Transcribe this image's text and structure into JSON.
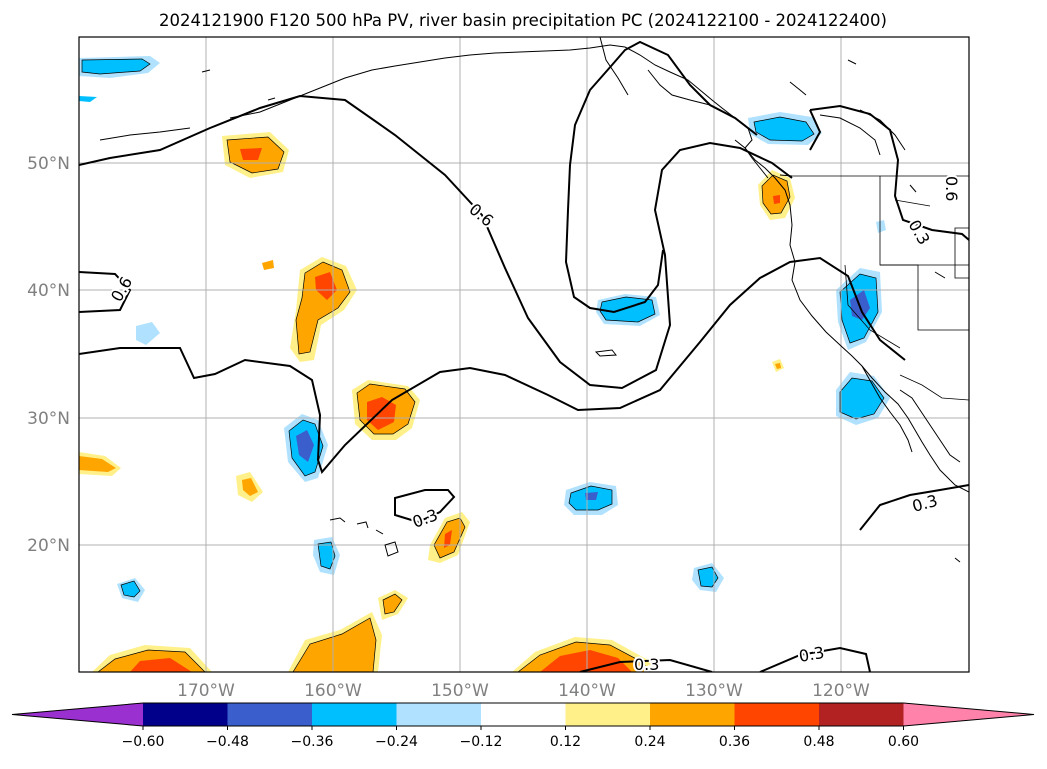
{
  "title": "2024121900 F120 500 hPa PV, river basin precipitation PC (2024122100 - 2024122400)",
  "map": {
    "lon_labels": [
      "170°W",
      "160°W",
      "150°W",
      "140°W",
      "130°W",
      "120°W"
    ],
    "lat_labels": [
      "20°N",
      "30°N",
      "40°N",
      "50°N"
    ],
    "grid": true,
    "contour_labels": [
      "0.6",
      "0.6",
      "0.6",
      "0.3",
      "0.3",
      "0.3",
      "0.3",
      "0.3"
    ]
  },
  "colorbar": {
    "ticks": [
      "−0.60",
      "−0.48",
      "−0.36",
      "−0.24",
      "−0.12",
      "0.12",
      "0.24",
      "0.36",
      "0.48",
      "0.60"
    ],
    "colors": [
      "#9b30d0",
      "#00008b",
      "#3a5fcd",
      "#00bfff",
      "#b0e2ff",
      "#ffffff",
      "#fff08a",
      "#ffa500",
      "#ff4500",
      "#b22222",
      "#ff82ab"
    ]
  }
}
